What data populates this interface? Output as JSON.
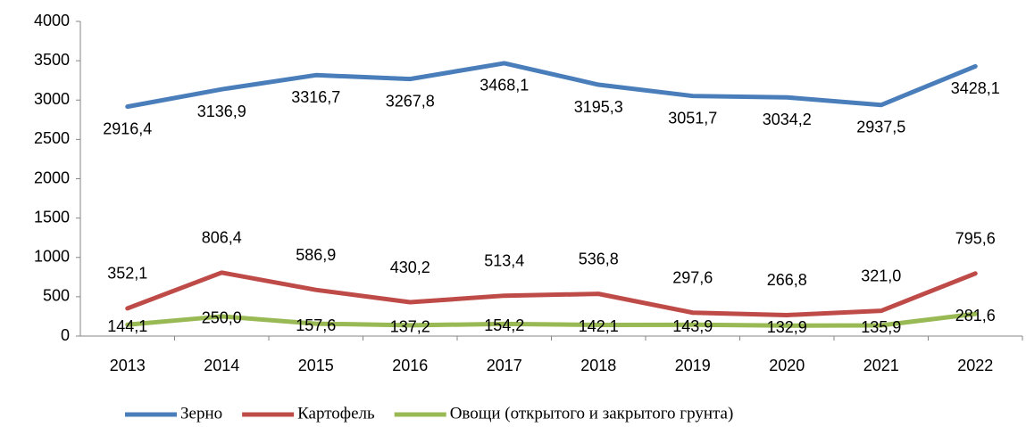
{
  "chart_data": {
    "type": "line",
    "categories": [
      "2013",
      "2014",
      "2015",
      "2016",
      "2017",
      "2018",
      "2019",
      "2020",
      "2021",
      "2022"
    ],
    "series": [
      {
        "name": "Зерно",
        "color": "#4a7ebb",
        "values": [
          2916.4,
          3136.9,
          3316.7,
          3267.8,
          3468.1,
          3195.3,
          3051.7,
          3034.2,
          2937.5,
          3428.1
        ],
        "value_labels": [
          "2916,4",
          "3136,9",
          "3316,7",
          "3267,8",
          "3468,1",
          "3195,3",
          "3051,7",
          "3034,2",
          "2937,5",
          "3428,1"
        ]
      },
      {
        "name": "Картофель",
        "color": "#be4b48",
        "values": [
          352.1,
          806.4,
          586.9,
          430.2,
          513.4,
          536.8,
          297.6,
          266.8,
          321.0,
          795.6
        ],
        "value_labels": [
          "352,1",
          "806,4",
          "586,9",
          "430,2",
          "513,4",
          "536,8",
          "297,6",
          "266,8",
          "321,0",
          "795,6"
        ]
      },
      {
        "name": "Овощи (открытого и закрытого грунта)",
        "color": "#98b954",
        "values": [
          144.1,
          250.0,
          157.6,
          137.2,
          154.2,
          142.1,
          143.9,
          132.9,
          135.9,
          281.6
        ],
        "value_labels": [
          "144,1",
          "250,0",
          "157,6",
          "137,2",
          "154,2",
          "142,1",
          "143,9",
          "132,9",
          "135,9",
          "281,6"
        ]
      }
    ],
    "ylim": [
      0,
      4000
    ],
    "yticks": [
      0,
      500,
      1000,
      1500,
      2000,
      2500,
      3000,
      3500,
      4000
    ],
    "legend": "bottom"
  }
}
